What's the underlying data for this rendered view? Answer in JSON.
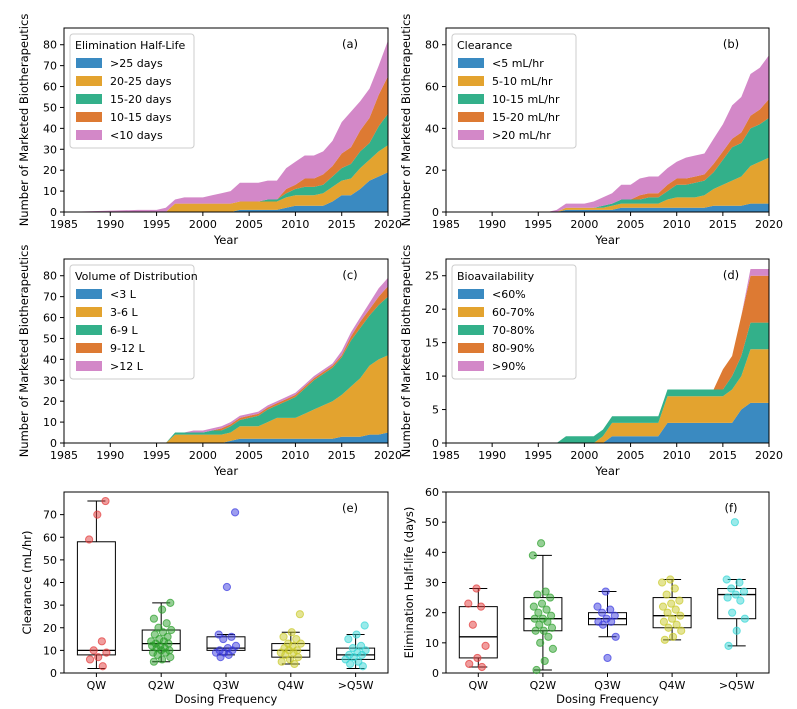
{
  "colors": {
    "blue": "#3a8ac1",
    "orange": "#e3a32f",
    "green": "#33b08a",
    "dark_orange": "#dd7a33",
    "pink": "#d388c8",
    "box_red": "#e23b3b",
    "box_green": "#2ca02c",
    "box_blue": "#3b3be0",
    "box_yellow": "#c9c92a",
    "box_cyan": "#35d6d6"
  },
  "chart_data": [
    {
      "type": "area",
      "panel": "(a)",
      "legend_title": "Elimination Half-Life",
      "legend_position": "top-left",
      "xlabel": "Year",
      "ylabel": "Number of Marketed Biotherapeutics",
      "xlim": [
        1985,
        2020
      ],
      "ylim": [
        0,
        88
      ],
      "xticks": [
        "1985",
        "1990",
        "1995",
        "2000",
        "2005",
        "2010",
        "2015",
        "2020"
      ],
      "yticks": [
        "0",
        "10",
        "20",
        "30",
        "40",
        "50",
        "60",
        "70",
        "80"
      ],
      "x": [
        1985,
        1993,
        1995,
        1996,
        1997,
        1998,
        1999,
        2000,
        2001,
        2002,
        2003,
        2004,
        2005,
        2006,
        2007,
        2008,
        2009,
        2010,
        2011,
        2012,
        2013,
        2014,
        2015,
        2016,
        2017,
        2018,
        2019,
        2020
      ],
      "series": [
        {
          "name": ">25 days",
          "values": [
            0,
            0,
            0,
            0,
            0,
            0,
            0,
            0,
            0,
            0,
            0,
            1,
            1,
            1,
            1,
            1,
            2,
            3,
            3,
            3,
            3,
            5,
            8,
            8,
            11,
            15,
            17,
            19
          ]
        },
        {
          "name": "20-25 days",
          "values": [
            0,
            0,
            0,
            0,
            4,
            4,
            4,
            4,
            4,
            4,
            4,
            4,
            4,
            4,
            4,
            4,
            5,
            5,
            5,
            5,
            6,
            7,
            7,
            8,
            10,
            10,
            12,
            13
          ]
        },
        {
          "name": "15-20 days",
          "values": [
            0,
            0,
            0,
            0,
            0,
            0,
            0,
            0,
            0,
            0,
            0,
            0,
            0,
            0,
            1,
            1,
            2,
            3,
            4,
            4,
            4,
            5,
            6,
            7,
            8,
            8,
            12,
            15
          ]
        },
        {
          "name": "10-15 days",
          "values": [
            0,
            0,
            0,
            0,
            0,
            0,
            0,
            0,
            0,
            0,
            0,
            0,
            0,
            0,
            0,
            0,
            2,
            2,
            4,
            4,
            5,
            5,
            7,
            8,
            10,
            12,
            15,
            18
          ]
        },
        {
          "name": "<10 days",
          "values": [
            0,
            1,
            1,
            2,
            2,
            3,
            3,
            3,
            4,
            5,
            6,
            9,
            9,
            9,
            9,
            9,
            10,
            11,
            11,
            11,
            11,
            12,
            15,
            17,
            14,
            14,
            14,
            17
          ]
        }
      ]
    },
    {
      "type": "area",
      "panel": "(b)",
      "legend_title": "Clearance",
      "legend_position": "top-left",
      "xlabel": "Year",
      "ylabel": "Number of Marketed Biotherapeutics",
      "xlim": [
        1985,
        2020
      ],
      "ylim": [
        0,
        88
      ],
      "xticks": [
        "1985",
        "1990",
        "1995",
        "2000",
        "2005",
        "2010",
        "2015",
        "2020"
      ],
      "yticks": [
        "0",
        "20",
        "40",
        "60",
        "80"
      ],
      "x": [
        1985,
        1996,
        1997,
        1998,
        1999,
        2000,
        2001,
        2002,
        2003,
        2004,
        2005,
        2006,
        2007,
        2008,
        2009,
        2010,
        2011,
        2012,
        2013,
        2014,
        2015,
        2016,
        2017,
        2018,
        2019,
        2020
      ],
      "series": [
        {
          "name": "<5 mL/hr",
          "values": [
            0,
            0,
            0,
            1,
            1,
            1,
            1,
            1,
            1,
            2,
            2,
            2,
            2,
            2,
            2,
            2,
            2,
            2,
            2,
            3,
            3,
            3,
            3,
            4,
            4,
            4
          ]
        },
        {
          "name": "5-10 mL/hr",
          "values": [
            0,
            0,
            0,
            1,
            1,
            1,
            1,
            1,
            2,
            2,
            2,
            2,
            2,
            2,
            4,
            5,
            5,
            5,
            6,
            8,
            10,
            12,
            14,
            18,
            20,
            22
          ]
        },
        {
          "name": "10-15 mL/hr",
          "values": [
            0,
            0,
            0,
            0,
            0,
            0,
            0,
            1,
            1,
            2,
            2,
            2,
            3,
            3,
            4,
            6,
            6,
            7,
            7,
            8,
            12,
            16,
            16,
            18,
            18,
            19
          ]
        },
        {
          "name": "15-20 mL/hr",
          "values": [
            0,
            0,
            0,
            0,
            0,
            0,
            0,
            0,
            0,
            0,
            0,
            2,
            2,
            2,
            3,
            3,
            3,
            3,
            3,
            4,
            4,
            4,
            5,
            6,
            7,
            9
          ]
        },
        {
          "name": ">20 mL/hr",
          "values": [
            0,
            0,
            1,
            2,
            2,
            2,
            3,
            4,
            5,
            7,
            7,
            8,
            8,
            8,
            8,
            8,
            10,
            10,
            10,
            12,
            13,
            16,
            17,
            20,
            20,
            21
          ]
        }
      ]
    },
    {
      "type": "area",
      "panel": "(c)",
      "legend_title": "Volume of Distribution",
      "legend_position": "top-left",
      "xlabel": "Year",
      "ylabel": "Number of Marketed Biotherapeutics",
      "xlim": [
        1985,
        2020
      ],
      "ylim": [
        0,
        88
      ],
      "xticks": [
        "1985",
        "1990",
        "1995",
        "2000",
        "2005",
        "2010",
        "2015",
        "2020"
      ],
      "yticks": [
        "0",
        "10",
        "20",
        "30",
        "40",
        "50",
        "60",
        "70",
        "80"
      ],
      "x": [
        1985,
        1996,
        1997,
        1998,
        1999,
        2000,
        2001,
        2002,
        2003,
        2004,
        2005,
        2006,
        2007,
        2008,
        2009,
        2010,
        2011,
        2012,
        2013,
        2014,
        2015,
        2016,
        2017,
        2018,
        2019,
        2020
      ],
      "series": [
        {
          "name": "<3 L",
          "values": [
            0,
            0,
            0,
            0,
            0,
            0,
            0,
            0,
            1,
            2,
            2,
            2,
            2,
            2,
            2,
            2,
            2,
            2,
            2,
            2,
            3,
            3,
            3,
            4,
            4,
            5
          ]
        },
        {
          "name": "3-6 L",
          "values": [
            0,
            0,
            4,
            4,
            4,
            4,
            4,
            4,
            4,
            6,
            6,
            6,
            8,
            10,
            10,
            10,
            12,
            14,
            16,
            18,
            20,
            24,
            28,
            33,
            36,
            37
          ]
        },
        {
          "name": "6-9 L",
          "values": [
            0,
            0,
            1,
            1,
            1,
            1,
            2,
            2,
            3,
            3,
            4,
            5,
            6,
            6,
            8,
            10,
            12,
            14,
            15,
            16,
            18,
            22,
            24,
            24,
            26,
            28
          ]
        },
        {
          "name": "9-12 L",
          "values": [
            0,
            0,
            0,
            0,
            0,
            0,
            0,
            1,
            1,
            1,
            1,
            1,
            1,
            1,
            1,
            1,
            1,
            1,
            1,
            1,
            1,
            2,
            3,
            3,
            4,
            5
          ]
        },
        {
          "name": ">12 L",
          "values": [
            0,
            0,
            0,
            0,
            1,
            1,
            1,
            1,
            1,
            1,
            1,
            1,
            1,
            1,
            1,
            1,
            1,
            1,
            1,
            1,
            2,
            2,
            2,
            3,
            4,
            4
          ]
        }
      ]
    },
    {
      "type": "area",
      "panel": "(d)",
      "legend_title": "Bioavailability",
      "legend_position": "top-left",
      "xlabel": "Year",
      "ylabel": "Number of Marketed Biotherapeutics",
      "xlim": [
        1985,
        2020
      ],
      "ylim": [
        0,
        27.5
      ],
      "xticks": [
        "1985",
        "1990",
        "1995",
        "2000",
        "2005",
        "2010",
        "2015",
        "2020"
      ],
      "yticks": [
        "0",
        "5",
        "10",
        "15",
        "20",
        "25"
      ],
      "x": [
        1985,
        1997,
        1998,
        2001,
        2002,
        2003,
        2008,
        2009,
        2014,
        2015,
        2016,
        2017,
        2018,
        2019,
        2020
      ],
      "series": [
        {
          "name": "<60%",
          "values": [
            0,
            0,
            0,
            0,
            0,
            1,
            1,
            3,
            3,
            3,
            3,
            5,
            6,
            6,
            6
          ]
        },
        {
          "name": "60-70%",
          "values": [
            0,
            0,
            0,
            0,
            1,
            2,
            2,
            4,
            4,
            4,
            5,
            5,
            8,
            8,
            8
          ]
        },
        {
          "name": "70-80%",
          "values": [
            0,
            0,
            1,
            1,
            1,
            1,
            1,
            1,
            1,
            1,
            2,
            3,
            4,
            4,
            4
          ]
        },
        {
          "name": "80-90%",
          "values": [
            0,
            0,
            0,
            0,
            0,
            0,
            0,
            0,
            0,
            3,
            3,
            6,
            7,
            7,
            7
          ]
        },
        {
          "name": ">90%",
          "values": [
            0,
            0,
            0,
            0,
            0,
            0,
            0,
            0,
            0,
            0,
            0,
            0,
            1,
            1,
            1
          ]
        }
      ]
    },
    {
      "type": "box",
      "panel": "(e)",
      "xlabel": "Dosing Frequency",
      "ylabel": "Clearance (mL/hr)",
      "ylim": [
        0,
        80
      ],
      "yticks": [
        "0",
        "10",
        "20",
        "30",
        "40",
        "50",
        "60",
        "70"
      ],
      "categories": [
        "QW",
        "Q2W",
        "Q3W",
        "Q4W",
        ">Q5W"
      ],
      "boxes": [
        {
          "min": 2,
          "q1": 8,
          "median": 10,
          "q3": 58,
          "max": 76
        },
        {
          "min": 5,
          "q1": 10,
          "median": 13,
          "q3": 19,
          "max": 31
        },
        {
          "min": 8,
          "q1": 10,
          "median": 11,
          "q3": 16,
          "max": 17
        },
        {
          "min": 4,
          "q1": 7,
          "median": 10,
          "q3": 13,
          "max": 18
        },
        {
          "min": 2,
          "q1": 6,
          "median": 8,
          "q3": 11,
          "max": 17
        }
      ],
      "points": [
        [
          76,
          70,
          59,
          14,
          10,
          9,
          7,
          6,
          3
        ],
        [
          31,
          28,
          24,
          22,
          20,
          19,
          18,
          17,
          16,
          15,
          14,
          14,
          13,
          13,
          12,
          12,
          11,
          11,
          10,
          10,
          9,
          9,
          8,
          7,
          6,
          5
        ],
        [
          71,
          38,
          17,
          16,
          15,
          12,
          11,
          10,
          10,
          9,
          9,
          8,
          7
        ],
        [
          26,
          18,
          16,
          15,
          13,
          13,
          12,
          11,
          10,
          10,
          9,
          9,
          8,
          7,
          6,
          5,
          4
        ],
        [
          21,
          17,
          15,
          12,
          11,
          10,
          9,
          8,
          8,
          7,
          6,
          5,
          4,
          3
        ]
      ]
    },
    {
      "type": "box",
      "panel": "(f)",
      "xlabel": "Dosing Frequency",
      "ylabel": "Elimination Half-life (days)",
      "ylim": [
        0,
        60
      ],
      "yticks": [
        "0",
        "10",
        "20",
        "30",
        "40",
        "50",
        "60"
      ],
      "categories": [
        "QW",
        "Q2W",
        "Q3W",
        "Q4W",
        ">Q5W"
      ],
      "boxes": [
        {
          "min": 2,
          "q1": 5,
          "median": 12,
          "q3": 22,
          "max": 28
        },
        {
          "min": 1,
          "q1": 14,
          "median": 18,
          "q3": 25,
          "max": 39
        },
        {
          "min": 12,
          "q1": 16,
          "median": 18,
          "q3": 20,
          "max": 27
        },
        {
          "min": 11,
          "q1": 15,
          "median": 19,
          "q3": 25,
          "max": 31
        },
        {
          "min": 9,
          "q1": 18,
          "median": 26,
          "q3": 28,
          "max": 31
        }
      ],
      "points": [
        [
          28,
          23,
          22,
          16,
          9,
          5,
          3,
          2
        ],
        [
          43,
          39,
          27,
          26,
          25,
          23,
          22,
          21,
          20,
          19,
          18,
          18,
          17,
          16,
          15,
          14,
          14,
          12,
          10,
          8,
          4,
          1
        ],
        [
          27,
          22,
          21,
          20,
          19,
          18,
          17,
          17,
          16,
          12,
          5
        ],
        [
          31,
          30,
          28,
          26,
          24,
          23,
          22,
          21,
          20,
          19,
          18,
          17,
          16,
          15,
          14,
          12,
          11
        ],
        [
          50,
          31,
          30,
          28,
          27,
          26,
          25,
          24,
          20,
          18,
          14,
          9
        ]
      ]
    }
  ]
}
